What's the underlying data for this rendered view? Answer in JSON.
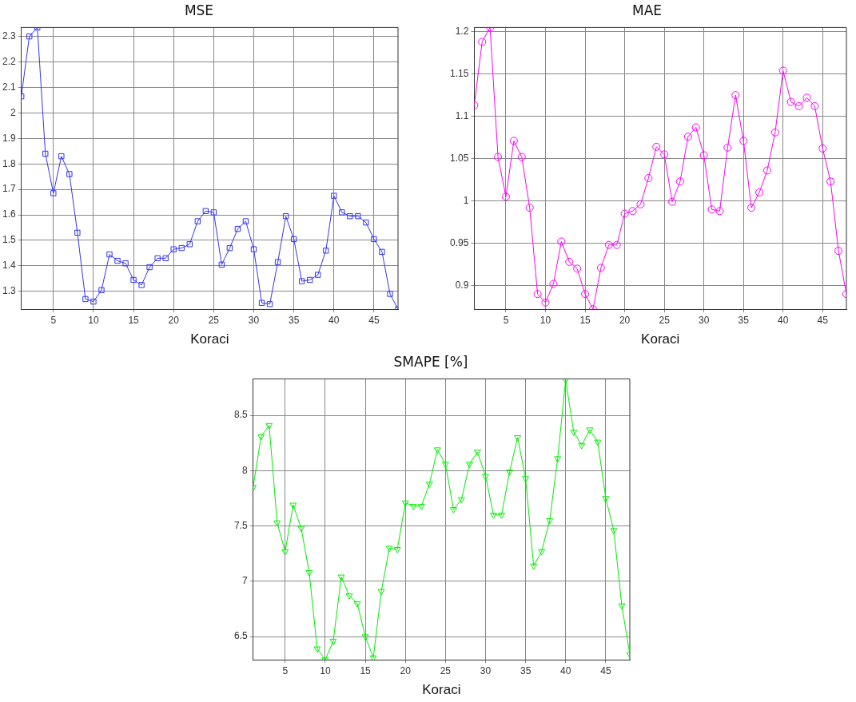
{
  "chart_data": [
    {
      "type": "line",
      "title": "MSE",
      "xlabel": "Koraci",
      "x": [
        1,
        2,
        3,
        4,
        5,
        6,
        7,
        8,
        9,
        10,
        11,
        12,
        13,
        14,
        15,
        16,
        17,
        18,
        19,
        20,
        21,
        22,
        23,
        24,
        25,
        26,
        27,
        28,
        29,
        30,
        31,
        32,
        33,
        34,
        35,
        36,
        37,
        38,
        39,
        40,
        41,
        42,
        43,
        44,
        45,
        46,
        47,
        48
      ],
      "series": [
        {
          "color": "#3333ff",
          "values": [
            2.065,
            2.3,
            2.335,
            1.84,
            1.685,
            1.83,
            1.76,
            1.53,
            1.27,
            1.26,
            1.305,
            1.445,
            1.42,
            1.41,
            1.345,
            1.325,
            1.395,
            1.43,
            1.43,
            1.465,
            1.47,
            1.485,
            1.575,
            1.615,
            1.61,
            1.405,
            1.47,
            1.545,
            1.575,
            1.465,
            1.255,
            1.25,
            1.415,
            1.595,
            1.505,
            1.34,
            1.345,
            1.365,
            1.46,
            1.675,
            1.61,
            1.595,
            1.595,
            1.57,
            1.505,
            1.455,
            1.29,
            1.23
          ]
        }
      ],
      "xlim": [
        1,
        48
      ],
      "xticks": [
        5,
        10,
        15,
        20,
        25,
        30,
        35,
        40,
        45
      ],
      "ylim": [
        1.23,
        2.335
      ],
      "yticks": [
        1.3,
        1.4,
        1.5,
        1.6,
        1.7,
        1.8,
        1.9,
        2,
        2.1,
        2.2,
        2.3
      ],
      "grid": true,
      "legend": false,
      "marker": "square",
      "line_style": "solid"
    },
    {
      "type": "line",
      "title": "MAE",
      "xlabel": "Koraci",
      "x": [
        1,
        2,
        3,
        4,
        5,
        6,
        7,
        8,
        9,
        10,
        11,
        12,
        13,
        14,
        15,
        16,
        17,
        18,
        19,
        20,
        21,
        22,
        23,
        24,
        25,
        26,
        27,
        28,
        29,
        30,
        31,
        32,
        33,
        34,
        35,
        36,
        37,
        38,
        39,
        40,
        41,
        42,
        43,
        44,
        45,
        46,
        47,
        48
      ],
      "series": [
        {
          "color": "#ff00ff",
          "values": [
            1.113,
            1.188,
            1.205,
            1.052,
            1.005,
            1.071,
            1.052,
            0.992,
            0.89,
            0.88,
            0.902,
            0.952,
            0.928,
            0.92,
            0.89,
            0.872,
            0.921,
            0.948,
            0.948,
            0.985,
            0.988,
            0.996,
            1.027,
            1.064,
            1.055,
            0.999,
            1.023,
            1.076,
            1.087,
            1.054,
            0.99,
            0.988,
            1.063,
            1.125,
            1.071,
            0.992,
            1.01,
            1.036,
            1.081,
            1.154,
            1.117,
            1.112,
            1.122,
            1.112,
            1.062,
            1.023,
            0.941,
            0.89
          ]
        }
      ],
      "xlim": [
        1,
        48
      ],
      "xticks": [
        5,
        10,
        15,
        20,
        25,
        30,
        35,
        40,
        45
      ],
      "ylim": [
        0.872,
        1.205
      ],
      "yticks": [
        0.9,
        0.95,
        1,
        1.05,
        1.1,
        1.15,
        1.2
      ],
      "grid": true,
      "legend": false,
      "marker": "circle",
      "line_style": "solid"
    },
    {
      "type": "line",
      "title": "SMAPE [%]",
      "xlabel": "Koraci",
      "x": [
        1,
        2,
        3,
        4,
        5,
        6,
        7,
        8,
        9,
        10,
        11,
        12,
        13,
        14,
        15,
        16,
        17,
        18,
        19,
        20,
        21,
        22,
        23,
        24,
        25,
        26,
        27,
        28,
        29,
        30,
        31,
        32,
        33,
        34,
        35,
        36,
        37,
        38,
        39,
        40,
        41,
        42,
        43,
        44,
        45,
        46,
        47,
        48
      ],
      "series": [
        {
          "color": "#00ee00",
          "values": [
            7.85,
            8.31,
            8.41,
            7.53,
            7.27,
            7.69,
            7.48,
            7.08,
            6.39,
            6.29,
            6.46,
            7.04,
            6.87,
            6.8,
            6.5,
            6.31,
            6.91,
            7.3,
            7.29,
            7.71,
            7.68,
            7.68,
            7.88,
            8.19,
            8.06,
            7.65,
            7.74,
            8.06,
            8.17,
            7.95,
            7.6,
            7.6,
            7.99,
            8.3,
            7.93,
            7.14,
            7.27,
            7.55,
            8.11,
            8.82,
            8.35,
            8.23,
            8.37,
            8.26,
            7.75,
            7.46,
            6.78,
            6.34
          ]
        }
      ],
      "xlim": [
        1,
        48
      ],
      "xticks": [
        5,
        10,
        15,
        20,
        25,
        30,
        35,
        40,
        45
      ],
      "ylim": [
        6.29,
        8.83
      ],
      "yticks": [
        6.5,
        7,
        7.5,
        8,
        8.5
      ],
      "grid": true,
      "legend": false,
      "marker": "triangle",
      "line_style": "solid"
    }
  ]
}
